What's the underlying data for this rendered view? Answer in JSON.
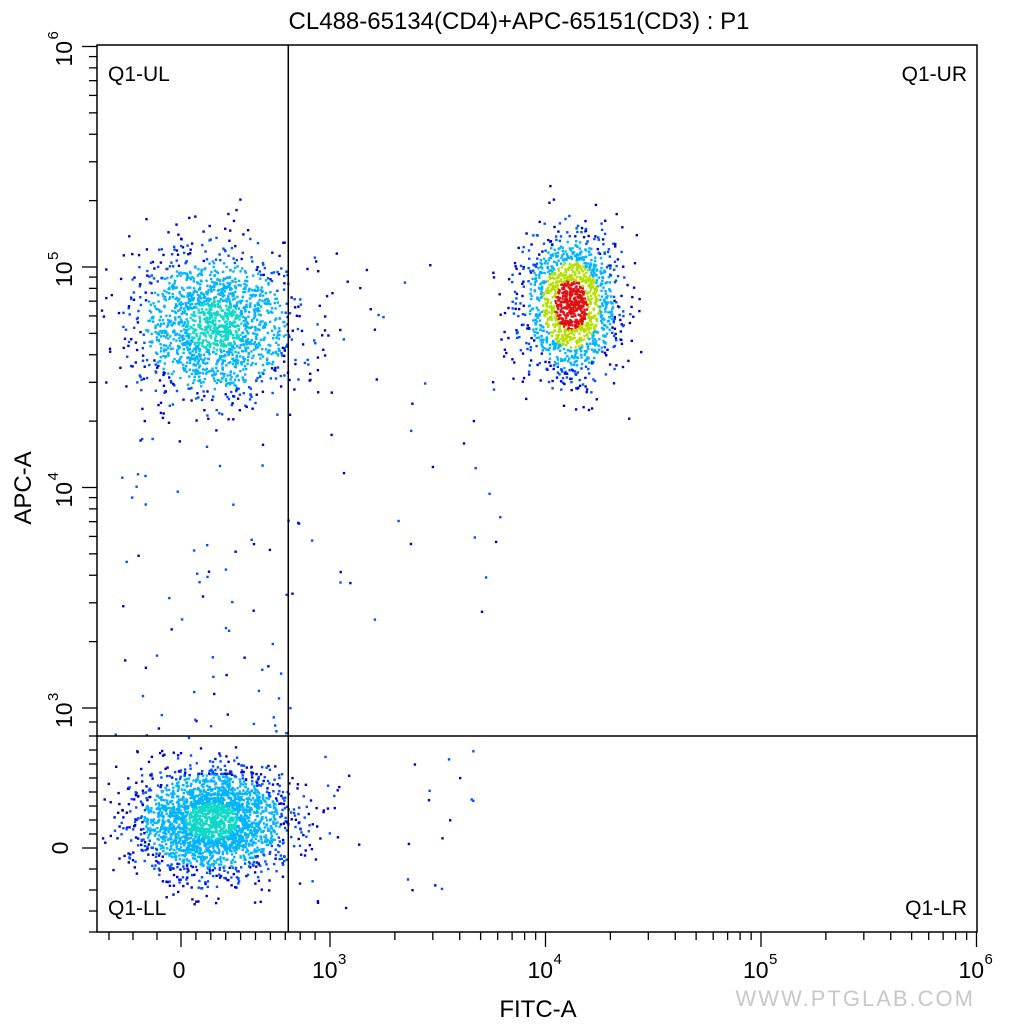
{
  "chart_data": {
    "type": "scatter",
    "title": "CL488-65134(CD4)+APC-65151(CD3) : P1",
    "xlabel": "FITC-A",
    "ylabel": "APC-A",
    "x_scale": "biexponential",
    "y_scale": "biexponential",
    "xlim": [
      -350,
      1000000
    ],
    "ylim": [
      -400,
      1000000
    ],
    "x_ticks": [
      {
        "value": 0,
        "base": "0",
        "exp": ""
      },
      {
        "value": 1000,
        "base": "10",
        "exp": "3"
      },
      {
        "value": 10000,
        "base": "10",
        "exp": "4"
      },
      {
        "value": 100000,
        "base": "10",
        "exp": "5"
      },
      {
        "value": 1000000,
        "base": "10",
        "exp": "6"
      }
    ],
    "y_ticks": [
      {
        "value": 0,
        "base": "0",
        "exp": ""
      },
      {
        "value": 1000,
        "base": "10",
        "exp": "3"
      },
      {
        "value": 10000,
        "base": "10",
        "exp": "4"
      },
      {
        "value": 100000,
        "base": "10",
        "exp": "5"
      },
      {
        "value": 1000000,
        "base": "10",
        "exp": "6"
      }
    ],
    "gates": {
      "x": 720,
      "y": 800
    },
    "quadrants": [
      {
        "id": "ul",
        "label": "Q1-UL",
        "position": "top-left"
      },
      {
        "id": "ur",
        "label": "Q1-UR",
        "position": "top-right"
      },
      {
        "id": "ll",
        "label": "Q1-LL",
        "position": "bottom-left"
      },
      {
        "id": "lr",
        "label": "Q1-LR",
        "position": "bottom-right"
      }
    ],
    "populations": [
      {
        "quadrant": "ul",
        "x_center": 220,
        "y_center": 55000,
        "count": 1700,
        "peak_color": "#19c8c8"
      },
      {
        "quadrant": "ur",
        "x_center": 13000,
        "y_center": 68000,
        "count": 1500,
        "peak_color": "#e01010"
      },
      {
        "quadrant": "ll",
        "x_center": 200,
        "y_center": 200,
        "count": 2500,
        "peak_color": "#10c8c8"
      }
    ],
    "density_colors": [
      "#0000cc",
      "#0050ff",
      "#00b4ff",
      "#10d8c8",
      "#3cd048",
      "#b4e000",
      "#f0a000",
      "#e01010"
    ],
    "watermark": "WWW.PTGLAB.COM"
  }
}
